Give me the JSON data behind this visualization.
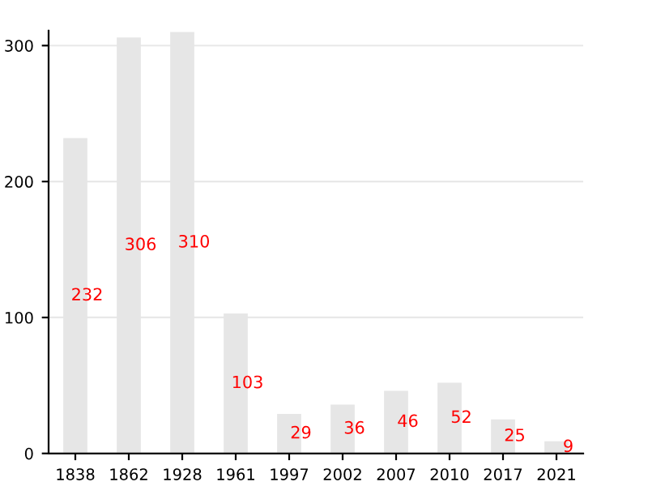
{
  "chart_data": {
    "type": "bar",
    "categories": [
      "1838",
      "1862",
      "1928",
      "1961",
      "1997",
      "2002",
      "2007",
      "2010",
      "2017",
      "2021"
    ],
    "values": [
      232,
      306,
      310,
      103,
      29,
      36,
      46,
      52,
      25,
      9
    ],
    "color": "#e6e6e6",
    "ylim": [
      0,
      311
    ],
    "yticks": [
      0,
      100,
      200,
      300
    ],
    "grid": "y",
    "data_labels": true
  }
}
